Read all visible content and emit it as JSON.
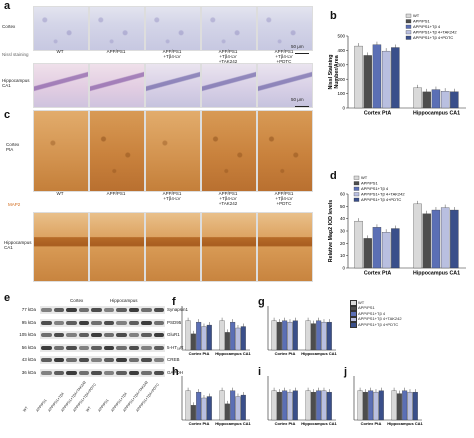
{
  "panels": {
    "a": {
      "letter": "a",
      "row_labels": [
        "Cortex",
        "Nissl staining",
        "Hippocampus CA1"
      ],
      "group_labels": [
        "WT",
        "APP/PS1",
        "APP/PS1\n+Tβ4-LV",
        "APP/PS1\n+Tβ4-LV\n+TAK242",
        "APP/PS1\n+Tβ4-LV\n+PDTC"
      ],
      "scalebars": [
        "50 μm",
        "50 μm"
      ]
    },
    "b": {
      "letter": "b",
      "ylabel": "Nissl Staining\nNumber/Area"
    },
    "c": {
      "letter": "c",
      "row_labels": [
        "Cortex\nPtA",
        "MAP2",
        "Hippocampus\nCA1"
      ],
      "group_labels": [
        "WT",
        "APP/PS1",
        "APP/PS1\n+Tβ4-LV",
        "APP/PS1\n+Tβ4-LV\n+TAK242",
        "APP/PS1\n+Tβ4-LV\n+PDTC"
      ]
    },
    "d": {
      "letter": "d",
      "ylabel": "Relative Map2 IOD levels"
    },
    "e": {
      "letter": "e",
      "region_labels": [
        "Cortex",
        "Hippocampus"
      ],
      "kda_labels": [
        "77 kDa",
        "95 kDa",
        "105 kDa",
        "56 kDa",
        "43 kDa",
        "36 kDa"
      ],
      "protein_labels": [
        "Synapsin1",
        "PSD95",
        "GluR1",
        "5-HT₁ₐR",
        "CREB",
        "GAPDH"
      ],
      "lane_labels": [
        "WT",
        "APP/PS1",
        "APP/PS1+Tβ4",
        "APP/PS1+Tβ4+TAK242",
        "APP/PS1+Tβ4+PDTC",
        "WT",
        "APP/PS1",
        "APP/PS1+Tβ4",
        "APP/PS1+Tβ4+TAK242",
        "APP/PS1+Tβ4+PDTC"
      ]
    },
    "f": {
      "letter": "f"
    },
    "g": {
      "letter": "g"
    },
    "h": {
      "letter": "h"
    },
    "i": {
      "letter": "i"
    },
    "j": {
      "letter": "j"
    }
  },
  "legend": {
    "entries": [
      "WT",
      "APP/PS1",
      "APP/PS1+Tβ 4",
      "APP/PS1+Tβ 4+TAK242",
      "APP/PS1+Tβ 4+PDTC"
    ],
    "colors": [
      "#d9d9d9",
      "#4d4d4d",
      "#5b6fb5",
      "#b9bfe0",
      "#3a4f8a"
    ]
  },
  "chart_data": [
    {
      "panel": "b",
      "type": "bar",
      "ylabel": "Nissl Staining\nNumber/Area",
      "ylim": [
        0,
        500
      ],
      "yticks": [
        0,
        100,
        200,
        300,
        400,
        500
      ],
      "categories": [
        "Cortex PtA",
        "Hippocampus CA1"
      ],
      "series": [
        {
          "name": "WT",
          "values": [
            430,
            140
          ]
        },
        {
          "name": "APP/PS1",
          "values": [
            365,
            112
          ]
        },
        {
          "name": "APP/PS1+Tβ 4",
          "values": [
            440,
            128
          ]
        },
        {
          "name": "APP/PS1+Tβ 4+TAK242",
          "values": [
            395,
            117
          ]
        },
        {
          "name": "APP/PS1+Tβ 4+PDTC",
          "values": [
            420,
            113
          ]
        }
      ],
      "annotations": [
        "#",
        "*",
        "*",
        "##",
        "**",
        "**",
        "**"
      ],
      "legend": "top-right"
    },
    {
      "panel": "d",
      "type": "bar",
      "ylabel": "Relative Map2 IOD levels",
      "ylim": [
        0,
        60
      ],
      "yticks": [
        0,
        10,
        20,
        30,
        40,
        50,
        60
      ],
      "categories": [
        "Cortex PtA",
        "Hippocampus CA1"
      ],
      "series": [
        {
          "name": "WT",
          "values": [
            38,
            52
          ]
        },
        {
          "name": "APP/PS1",
          "values": [
            24,
            44
          ]
        },
        {
          "name": "APP/PS1+Tβ 4",
          "values": [
            33,
            47
          ]
        },
        {
          "name": "APP/PS1+Tβ 4+TAK242",
          "values": [
            29,
            49
          ]
        },
        {
          "name": "APP/PS1+Tβ 4+PDTC",
          "values": [
            32,
            47
          ]
        }
      ],
      "annotations": [
        "###",
        "*",
        "##",
        "#",
        "#"
      ],
      "legend": "top-left"
    },
    {
      "panel": "f",
      "type": "bar",
      "categories": [
        "Cortex PtA",
        "Hippocampus CA1"
      ],
      "ylim": [
        0,
        1.5
      ],
      "series": [
        {
          "name": "WT",
          "values": [
            1.0,
            1.0
          ]
        },
        {
          "name": "APP/PS1",
          "values": [
            0.55,
            0.6
          ]
        },
        {
          "name": "APP/PS1+Tβ 4",
          "values": [
            0.95,
            0.95
          ]
        },
        {
          "name": "APP/PS1+Tβ 4+TAK242",
          "values": [
            0.8,
            0.75
          ]
        },
        {
          "name": "APP/PS1+Tβ 4+PDTC",
          "values": [
            0.85,
            0.8
          ]
        }
      ]
    },
    {
      "panel": "g",
      "type": "bar",
      "categories": [
        "Cortex PtA",
        "Hippocampus CA1"
      ],
      "ylim": [
        0,
        1.5
      ],
      "series": [
        {
          "name": "WT",
          "values": [
            1.0,
            1.0
          ]
        },
        {
          "name": "APP/PS1",
          "values": [
            0.95,
            0.9
          ]
        },
        {
          "name": "APP/PS1+Tβ 4",
          "values": [
            1.0,
            1.0
          ]
        },
        {
          "name": "APP/PS1+Tβ 4+TAK242",
          "values": [
            0.95,
            0.95
          ]
        },
        {
          "name": "APP/PS1+Tβ 4+PDTC",
          "values": [
            1.0,
            0.95
          ]
        }
      ]
    },
    {
      "panel": "h",
      "type": "bar",
      "categories": [
        "Cortex PtA",
        "Hippocampus CA1"
      ],
      "ylim": [
        0,
        1.5
      ],
      "series": [
        {
          "name": "WT",
          "values": [
            1.0,
            1.0
          ]
        },
        {
          "name": "APP/PS1",
          "values": [
            0.5,
            0.55
          ]
        },
        {
          "name": "APP/PS1+Tβ 4",
          "values": [
            0.95,
            1.0
          ]
        },
        {
          "name": "APP/PS1+Tβ 4+TAK242",
          "values": [
            0.75,
            0.8
          ]
        },
        {
          "name": "APP/PS1+Tβ 4+PDTC",
          "values": [
            0.8,
            0.85
          ]
        }
      ]
    },
    {
      "panel": "i",
      "type": "bar",
      "categories": [
        "Cortex PtA",
        "Hippocampus CA1"
      ],
      "ylim": [
        0,
        1.5
      ],
      "series": [
        {
          "name": "WT",
          "values": [
            1.0,
            1.0
          ]
        },
        {
          "name": "APP/PS1",
          "values": [
            0.95,
            0.95
          ]
        },
        {
          "name": "APP/PS1+Tβ 4",
          "values": [
            1.0,
            1.0
          ]
        },
        {
          "name": "APP/PS1+Tβ 4+TAK242",
          "values": [
            0.95,
            1.0
          ]
        },
        {
          "name": "APP/PS1+Tβ 4+PDTC",
          "values": [
            1.0,
            0.95
          ]
        }
      ]
    },
    {
      "panel": "j",
      "type": "bar",
      "categories": [
        "Cortex PtA",
        "Hippocampus CA1"
      ],
      "ylim": [
        0,
        1.5
      ],
      "series": [
        {
          "name": "WT",
          "values": [
            1.0,
            1.0
          ]
        },
        {
          "name": "APP/PS1",
          "values": [
            0.95,
            0.9
          ]
        },
        {
          "name": "APP/PS1+Tβ 4",
          "values": [
            1.0,
            1.0
          ]
        },
        {
          "name": "APP/PS1+Tβ 4+TAK242",
          "values": [
            0.95,
            0.95
          ]
        },
        {
          "name": "APP/PS1+Tβ 4+PDTC",
          "values": [
            1.0,
            0.95
          ]
        }
      ]
    }
  ]
}
